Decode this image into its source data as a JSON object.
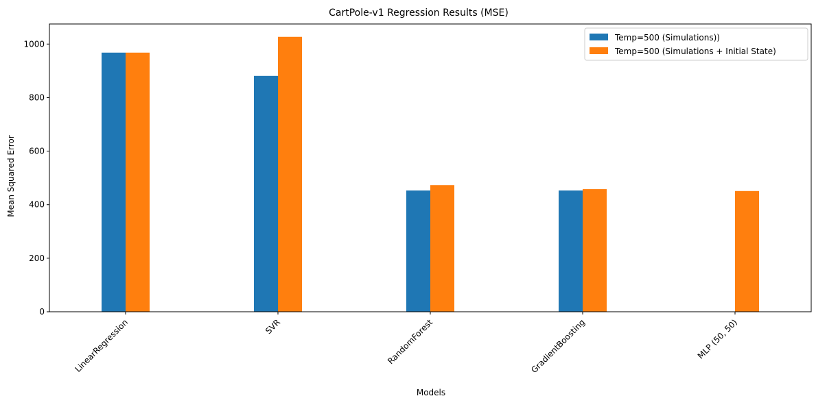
{
  "chart_data": {
    "type": "bar",
    "title": "CartPole-v1 Regression Results (MSE)",
    "xlabel": "Models",
    "ylabel": "Mean Squared Error",
    "categories": [
      "LinearRegression",
      "SVR",
      "RandomForest",
      "GradientBoosting",
      "MLP (50, 50)"
    ],
    "series": [
      {
        "name": "Temp=500 (Simulations))",
        "color": "#1f77b4",
        "values": [
          968,
          881,
          453,
          453,
          null
        ]
      },
      {
        "name": "Temp=500 (Simulations + Initial State)",
        "color": "#ff7f0e",
        "values": [
          968,
          1027,
          473,
          458,
          451
        ]
      }
    ],
    "ylim": [
      0,
      1075
    ],
    "yticks": [
      0,
      200,
      400,
      600,
      800,
      1000
    ],
    "grid": false,
    "legend_position": "top-right"
  }
}
